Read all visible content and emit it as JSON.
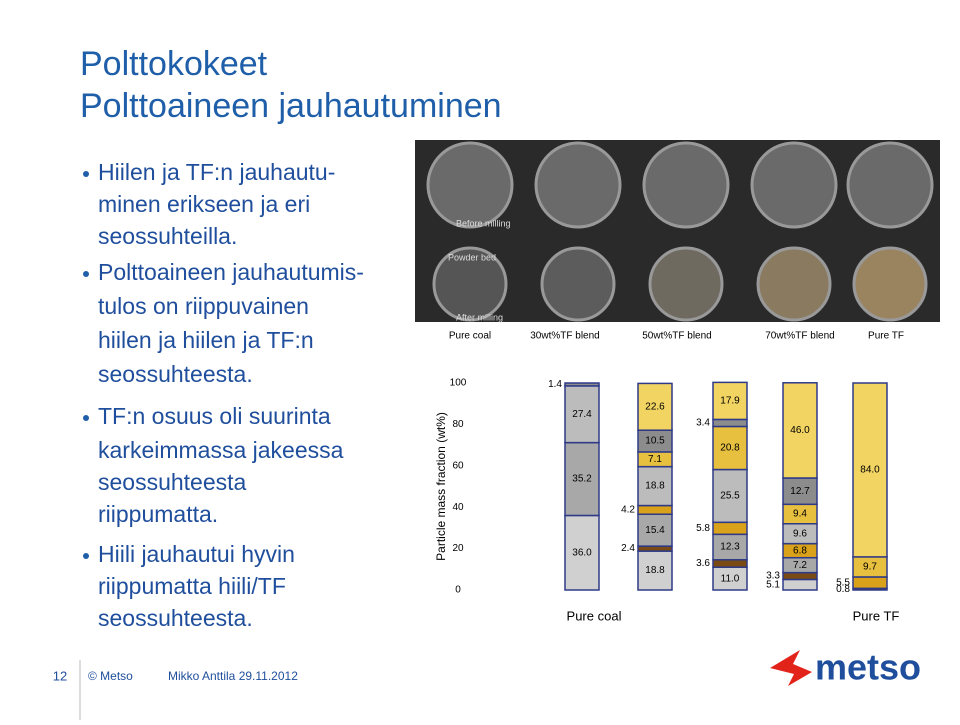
{
  "slide": {
    "title": [
      "Polttokokeet",
      "Polttoaineen jauhautuminen"
    ],
    "bullets": [
      [
        "Hiilen ja TF:n jauhautu-",
        "minen erikseen ja eri",
        "seossuhteilla."
      ],
      [
        "Polttoaineen jauhautumis-",
        "tulos on riippuvainen",
        "hiilen ja hiilen ja TF:n",
        "seossuhteesta."
      ],
      [
        "TF:n osuus oli suurinta",
        "karkeimmassa jakeessa",
        "seossuhteesta",
        "riippumatta."
      ],
      [
        "Hiili jauhautui hyvin",
        "riippumatta  hiili/TF",
        "seossuhteesta."
      ]
    ],
    "footer": {
      "page": "12",
      "copyright": "© Metso",
      "author": "Mikko Anttila 29.11.2012",
      "logo": "metso"
    },
    "photos": {
      "annotations": [
        "Before milling",
        "Powder bed",
        "After milling"
      ],
      "labels": [
        "Pure coal",
        "30wt%TF blend",
        "50wt%TF blend",
        "70wt%TF blend",
        "Pure TF"
      ]
    }
  },
  "chart_data": {
    "type": "stacked_bar",
    "y_label": "Particle mass fraction (wt%)",
    "categories": [
      "Pure coal",
      null,
      null,
      null,
      "Pure TF"
    ],
    "ylim": [
      0,
      100
    ],
    "yticks": [
      0,
      20,
      40,
      60,
      80,
      100
    ],
    "grid": false,
    "series": [
      {
        "color": "#d0d0d0",
        "values": [
          36,
          18.8,
          11,
          5.1,
          null
        ],
        "value_labels": [
          "36.0",
          "18.8",
          "11.0",
          "5.1",
          null
        ]
      },
      {
        "color": "#7a4a14",
        "values": [
          null,
          2.4,
          3.6,
          3.3,
          0.8
        ],
        "value_labels": [
          null,
          "2.4",
          "3.6",
          "3.3",
          "0.8"
        ]
      },
      {
        "color": "#a8a8a8",
        "values": [
          35.2,
          15.4,
          12.3,
          7.2,
          null
        ],
        "value_labels": [
          "35.2",
          "15.4",
          "12.3",
          "7.2",
          null
        ]
      },
      {
        "color": "#d9a21a",
        "values": [
          null,
          4.2,
          5.8,
          6.8,
          5.5
        ],
        "value_labels": [
          null,
          "4.2",
          "5.8",
          "6.8",
          "5.5"
        ]
      },
      {
        "color": "#bcbcbc",
        "values": [
          27.4,
          18.8,
          25.5,
          9.6,
          null
        ],
        "value_labels": [
          "27.4",
          "18.8",
          "25.5",
          "9.6",
          null
        ]
      },
      {
        "color": "#e8c040",
        "values": [
          null,
          7.1,
          20.8,
          9.4,
          9.7
        ],
        "value_labels": [
          null,
          "7.1",
          "20.8",
          "9.4",
          "9.7"
        ]
      },
      {
        "color": "#8c8c8c",
        "values": [
          1.4,
          10.5,
          3.4,
          12.7,
          null
        ],
        "value_labels": [
          "1.4",
          "10.5",
          "3.4",
          "12.7",
          null
        ]
      },
      {
        "color": "#f2d462",
        "values": [
          null,
          22.6,
          17.9,
          46,
          84
        ],
        "value_labels": [
          null,
          "22.6",
          "17.9",
          "46.0",
          "84.0"
        ]
      }
    ]
  }
}
